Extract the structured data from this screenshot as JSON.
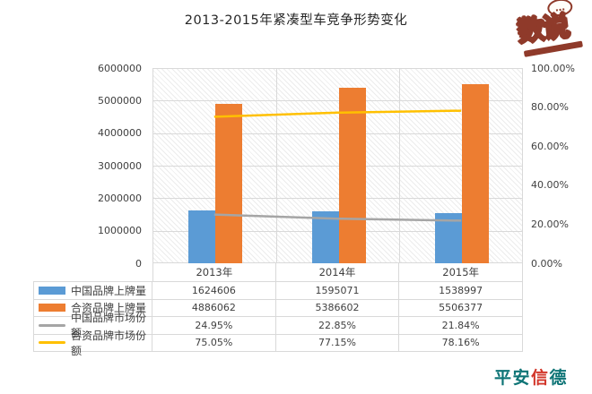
{
  "title": "2013-2015年紧凑型车竞争形势变化",
  "watermark": {
    "stamp_text": "数说",
    "bubble_dots": "…"
  },
  "footer_logo": {
    "part1": "平安",
    "part2": "信",
    "part3": "德"
  },
  "colors": {
    "bar_blue": "#5B9BD5",
    "bar_orange": "#ED7D31",
    "line_gray": "#A5A5A5",
    "line_yellow": "#FFC000",
    "grid": "#D9D9D9",
    "text": "#404040",
    "stamp": "#8f3a2a",
    "footer_teal": "#0e7476",
    "footer_red": "#d2362a"
  },
  "chart_data": {
    "type": "combo-bar-line",
    "title": "2013-2015年紧凑型车竞争形势变化",
    "categories": [
      "2013年",
      "2014年",
      "2015年"
    ],
    "series": [
      {
        "name": "中国品牌上牌量",
        "type": "bar",
        "axis": "left",
        "color": "#5B9BD5",
        "values": [
          1624606,
          1595071,
          1538997
        ],
        "display": [
          "1624606",
          "1595071",
          "1538997"
        ]
      },
      {
        "name": "合资品牌上牌量",
        "type": "bar",
        "axis": "left",
        "color": "#ED7D31",
        "values": [
          4886062,
          5386602,
          5506377
        ],
        "display": [
          "4886062",
          "5386602",
          "5506377"
        ]
      },
      {
        "name": "中国品牌市场份额",
        "type": "line",
        "axis": "right",
        "color": "#A5A5A5",
        "values": [
          24.95,
          22.85,
          21.84
        ],
        "display": [
          "24.95%",
          "22.85%",
          "21.84%"
        ]
      },
      {
        "name": "合资品牌市场份额",
        "type": "line",
        "axis": "right",
        "color": "#FFC000",
        "values": [
          75.05,
          77.15,
          78.16
        ],
        "display": [
          "75.05%",
          "77.15%",
          "78.16%"
        ]
      }
    ],
    "left_axis": {
      "min": 0,
      "max": 6000000,
      "step": 1000000,
      "ticks": [
        "6000000",
        "5000000",
        "4000000",
        "3000000",
        "2000000",
        "1000000",
        "0"
      ]
    },
    "right_axis": {
      "min": 0,
      "max": 100,
      "step": 20,
      "ticks": [
        "100.00%",
        "80.00%",
        "60.00%",
        "40.00%",
        "20.00%",
        "0.00%"
      ]
    },
    "grid": true,
    "legend_position": "data-table-left",
    "plot_background": "diagonal-hatch"
  }
}
